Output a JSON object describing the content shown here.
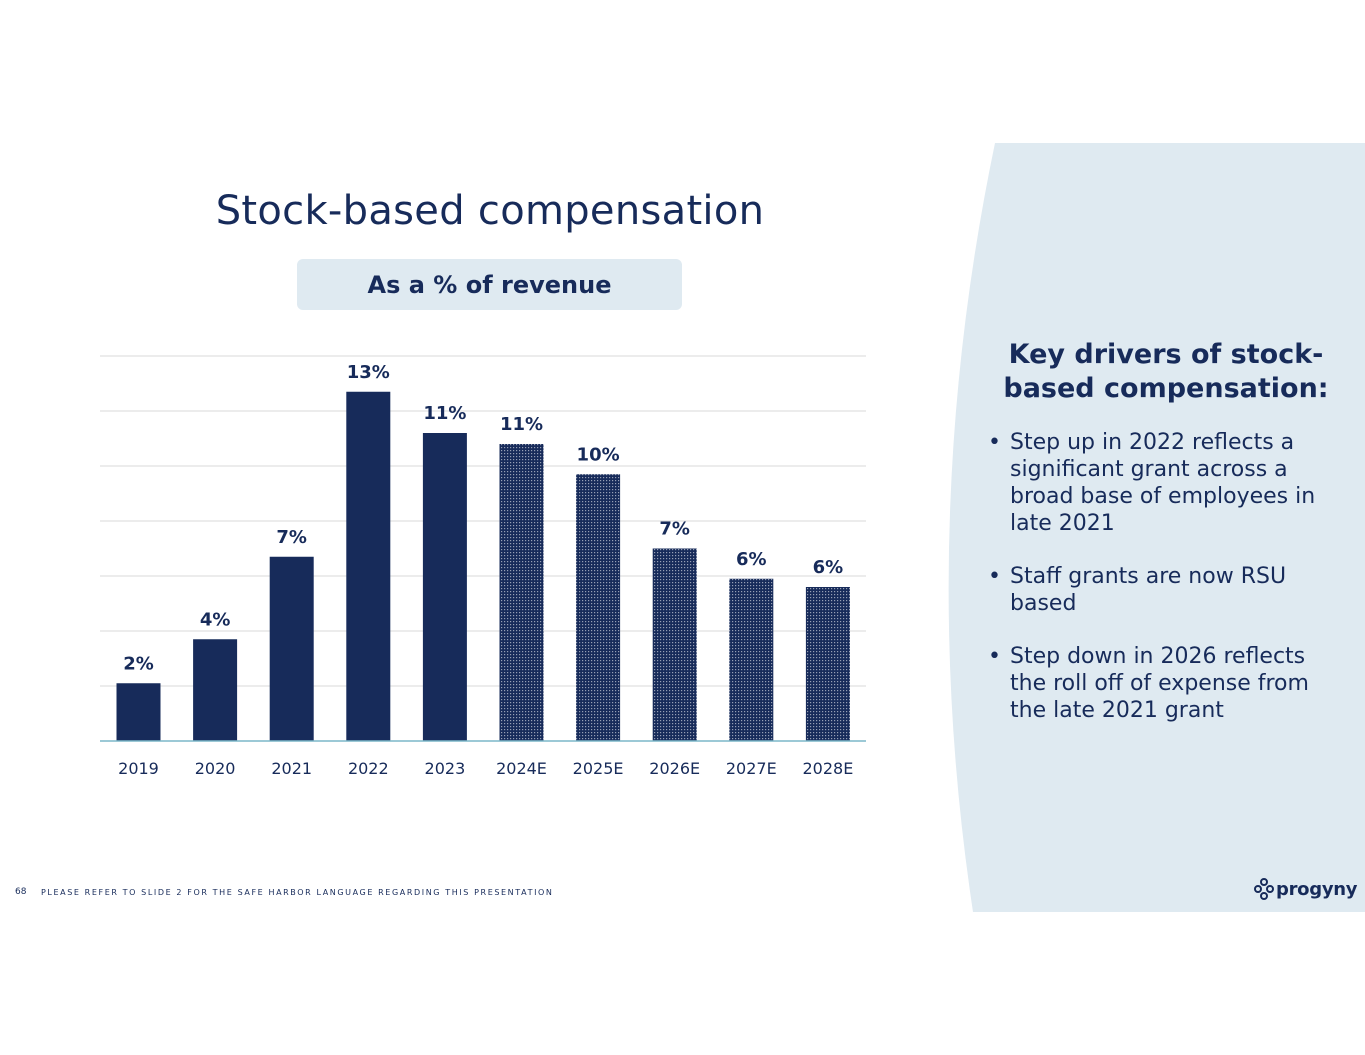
{
  "slide": {
    "title": "Stock-based compensation",
    "subtitle": "As a % of revenue",
    "page_number": "68",
    "footer_note": "PLEASE REFER TO SLIDE 2 FOR THE SAFE HARBOR LANGUAGE REGARDING THIS PRESENTATION",
    "logo_text": "progyny"
  },
  "side_panel": {
    "title": "Key drivers of stock-based compensation:",
    "bullets": [
      "Step up in 2022 reflects a significant grant across a broad base of employees in late 2021",
      "Staff grants are now RSU based",
      "Step down in 2026 reflects the roll off of expense from the late 2021 grant"
    ],
    "bullet_char": "•"
  },
  "colors": {
    "primary": "#172b5a",
    "panel_bg": "#dfeaf1",
    "axis": "#7bb7c8",
    "grid": "#d9d9d9"
  },
  "chart_data": {
    "type": "bar",
    "title": "Stock-based compensation",
    "subtitle": "As a % of revenue",
    "categories": [
      "2019",
      "2020",
      "2021",
      "2022",
      "2023",
      "2024E",
      "2025E",
      "2026E",
      "2027E",
      "2028E"
    ],
    "values": [
      2.1,
      3.7,
      6.7,
      12.7,
      11.2,
      10.8,
      9.7,
      7.0,
      5.9,
      5.6
    ],
    "labels": [
      "2%",
      "4%",
      "7%",
      "13%",
      "11%",
      "11%",
      "10%",
      "7%",
      "6%",
      "6%"
    ],
    "estimate": [
      false,
      false,
      false,
      false,
      false,
      true,
      true,
      true,
      true,
      true
    ],
    "xlabel": "",
    "ylabel": "",
    "ylim": [
      0,
      14
    ],
    "grid": true,
    "legend": "none"
  }
}
